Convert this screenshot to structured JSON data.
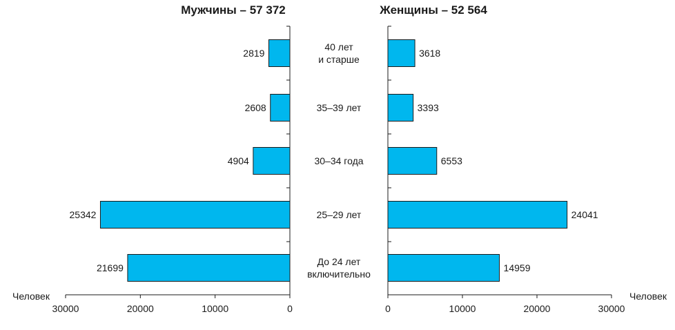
{
  "chart_data": {
    "type": "bar",
    "orientation": "horizontal",
    "layout": "population-pyramid",
    "categories": [
      [
        "40 лет",
        "и старше"
      ],
      [
        "35–39 лет"
      ],
      [
        "30–34 года"
      ],
      [
        "25–29 лет"
      ],
      [
        "До 24 лет",
        "включительно"
      ]
    ],
    "series": [
      {
        "name": "Мужчины – 57 372",
        "side": "left",
        "values": [
          2819,
          2608,
          4904,
          25342,
          21699
        ]
      },
      {
        "name": "Женщины – 52 564",
        "side": "right",
        "values": [
          3618,
          3393,
          6553,
          24041,
          14959
        ]
      }
    ],
    "xlabel_left": "Человек",
    "xlabel_right": "Человек",
    "xlim": [
      0,
      30000
    ],
    "xticks": [
      0,
      10000,
      20000,
      30000
    ],
    "xtick_labels_left": [
      "0",
      "10000",
      "20000",
      "30000"
    ],
    "xtick_labels_right": [
      "0",
      "10000",
      "20000",
      "30000"
    ],
    "grid": false,
    "legend": "none",
    "bar_color": "#00b7ee",
    "text_color": "#1a1a1a"
  }
}
